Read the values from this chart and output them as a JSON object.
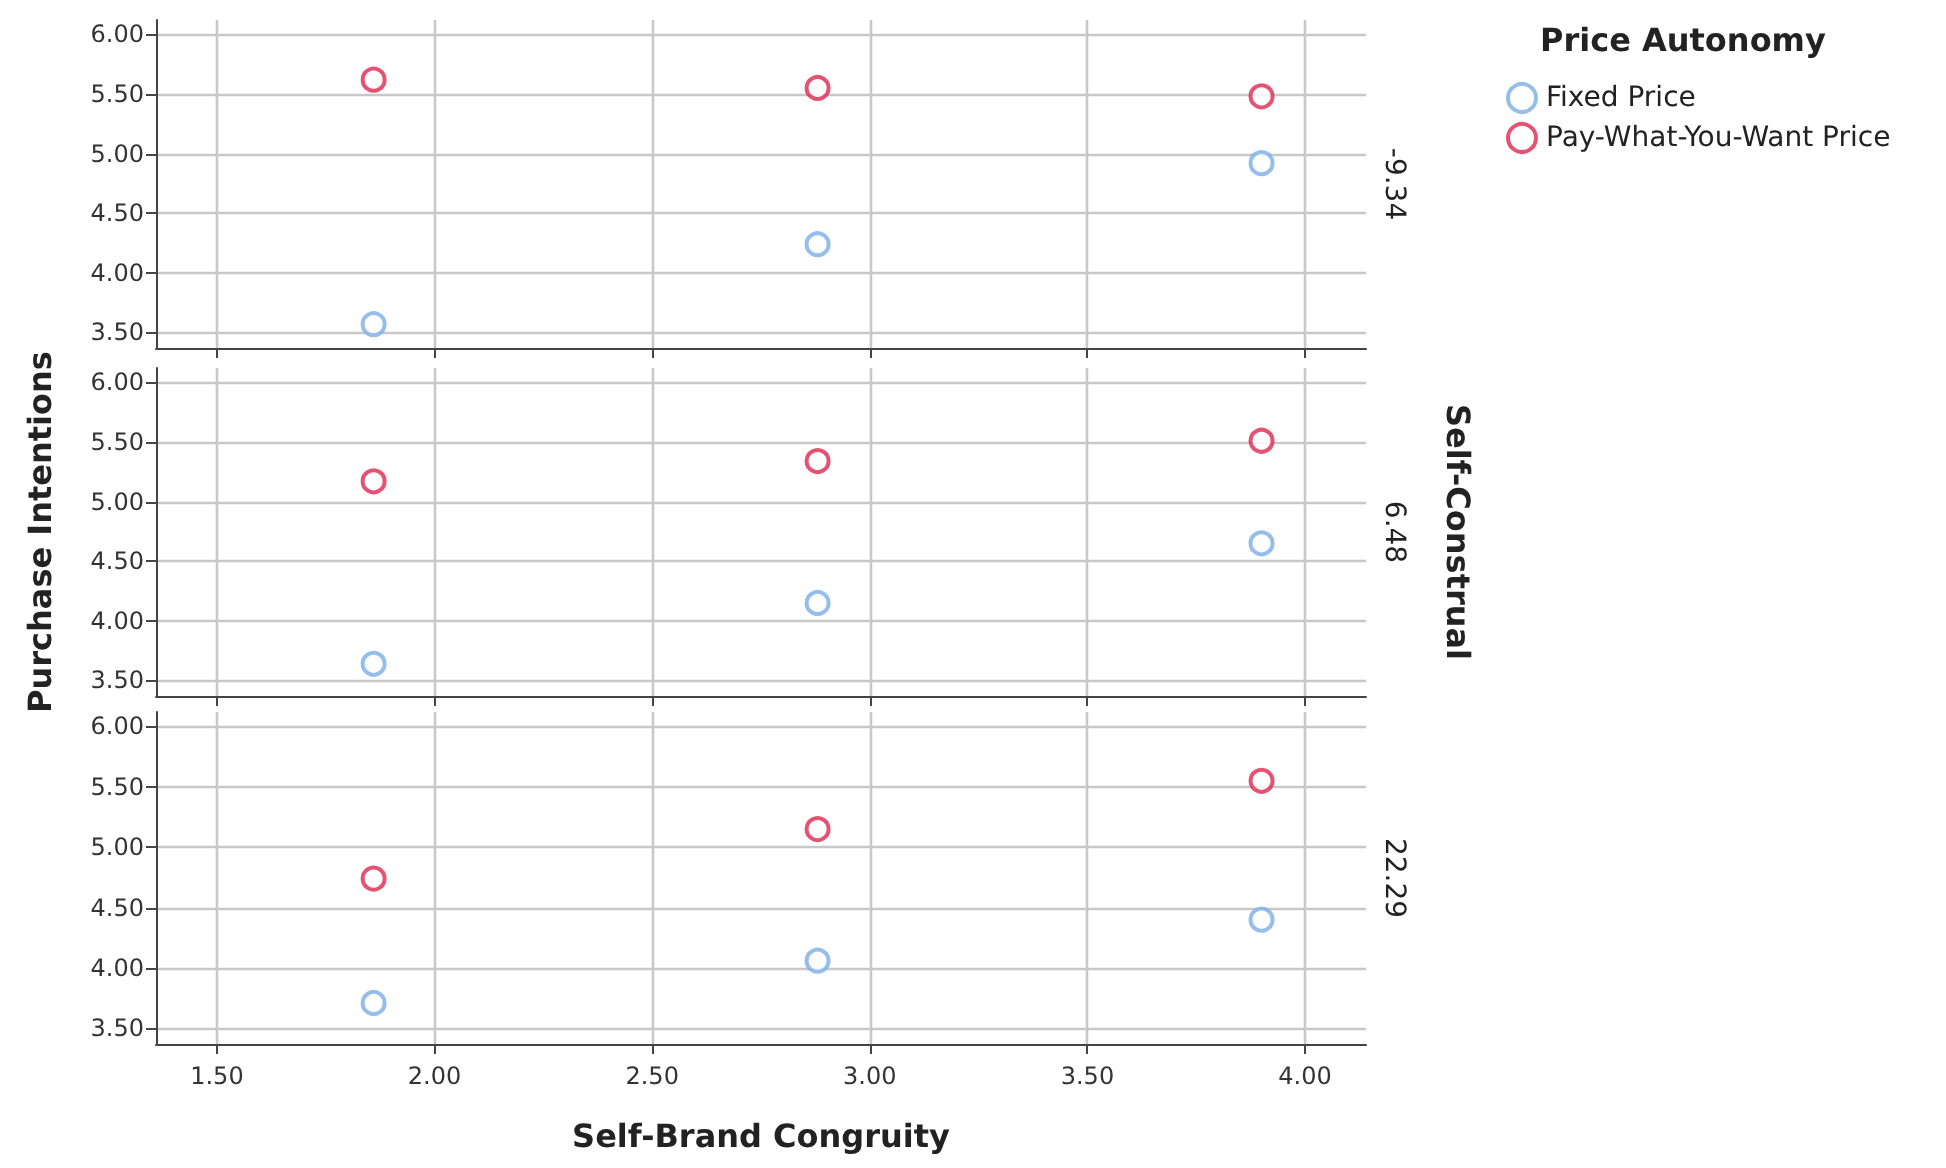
{
  "chart_data": [
    {
      "type": "scatter",
      "legend_title": "Price Autonomy",
      "y2label": "-9.34",
      "legend": "right",
      "marker": "circle",
      "grid": true,
      "tick_labels": "y",
      "xlim": [
        1.36,
        4.14
      ],
      "xticks": [
        {
          "value": 1.5,
          "label": null
        },
        {
          "value": 2,
          "label": null
        },
        {
          "value": 2.5,
          "label": null
        },
        {
          "value": 3,
          "label": null
        },
        {
          "value": 3.5,
          "label": null
        },
        {
          "value": 4,
          "label": null
        }
      ],
      "ylim": [
        3.37,
        6.12
      ],
      "yticks": [
        {
          "value": 3.5,
          "label": "3.50"
        },
        {
          "value": 4,
          "label": "4.00"
        },
        {
          "value": 4.5,
          "label": "4.50"
        },
        {
          "value": 5,
          "label": "5.00"
        },
        {
          "value": 5.5,
          "label": "5.50"
        },
        {
          "value": 6,
          "label": "6.00"
        }
      ],
      "x": [
        1.86,
        2.88,
        3.9
      ],
      "series": [
        {
          "name": "Fixed Price",
          "color": "#7aaee8",
          "values": [
            3.57,
            4.24,
            4.92
          ]
        },
        {
          "name": "Pay-What-You-Want Price",
          "color": "#e0284f",
          "values": [
            5.62,
            5.55,
            5.48
          ]
        }
      ]
    },
    {
      "type": "scatter",
      "ylabel": "Purchase Intentions",
      "y2label": "6.48",
      "annotations": [
        "Self-Construal"
      ],
      "marker": "circle",
      "grid": true,
      "tick_labels": "y",
      "xlim": [
        1.36,
        4.14
      ],
      "xticks": [
        {
          "value": 1.5,
          "label": null
        },
        {
          "value": 2,
          "label": null
        },
        {
          "value": 2.5,
          "label": null
        },
        {
          "value": 3,
          "label": null
        },
        {
          "value": 3.5,
          "label": null
        },
        {
          "value": 4,
          "label": null
        }
      ],
      "ylim": [
        3.37,
        6.12
      ],
      "yticks": [
        {
          "value": 3.5,
          "label": "3.50"
        },
        {
          "value": 4,
          "label": "4.00"
        },
        {
          "value": 4.5,
          "label": "4.50"
        },
        {
          "value": 5,
          "label": "5.00"
        },
        {
          "value": 5.5,
          "label": "5.50"
        },
        {
          "value": 6,
          "label": "6.00"
        }
      ],
      "x": [
        1.86,
        2.88,
        3.9
      ],
      "series": [
        {
          "color": "#7aaee8",
          "values": [
            3.64,
            4.15,
            4.65
          ]
        },
        {
          "color": "#e0284f",
          "values": [
            5.17,
            5.34,
            5.51
          ]
        }
      ]
    },
    {
      "type": "scatter",
      "xlabel": "Self-Brand Congruity",
      "y2label": "22.29",
      "marker": "circle",
      "grid": true,
      "xlim": [
        1.36,
        4.14
      ],
      "xticks": [
        {
          "value": 1.5,
          "label": "1.50"
        },
        {
          "value": 2,
          "label": "2.00"
        },
        {
          "value": 2.5,
          "label": "2.50"
        },
        {
          "value": 3,
          "label": "3.00"
        },
        {
          "value": 3.5,
          "label": "3.50"
        },
        {
          "value": 4,
          "label": "4.00"
        }
      ],
      "ylim": [
        3.37,
        6.12
      ],
      "yticks": [
        {
          "value": 3.5,
          "label": "3.50"
        },
        {
          "value": 4,
          "label": "4.00"
        },
        {
          "value": 4.5,
          "label": "4.50"
        },
        {
          "value": 5,
          "label": "5.00"
        },
        {
          "value": 5.5,
          "label": "5.50"
        },
        {
          "value": 6,
          "label": "6.00"
        }
      ],
      "x": [
        1.86,
        2.88,
        3.9
      ],
      "series": [
        {
          "color": "#7aaee8",
          "values": [
            3.71,
            4.06,
            4.4
          ]
        },
        {
          "color": "#e0284f",
          "values": [
            4.74,
            5.15,
            5.55
          ]
        }
      ]
    }
  ]
}
